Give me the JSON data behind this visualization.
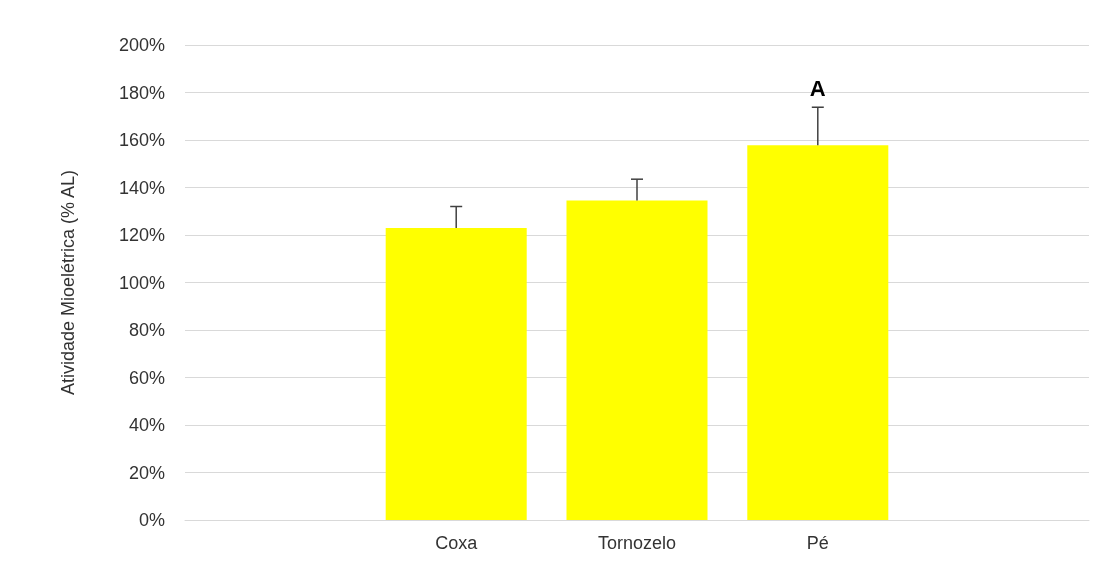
{
  "chart_data": {
    "type": "bar",
    "ylabel": "Atividade Mioelétrica (% AL)",
    "categories": [
      null,
      "Coxa",
      "Tornozelo",
      "Pé",
      null
    ],
    "values": [
      null,
      123,
      134.5,
      157.8,
      null
    ],
    "errors": [
      null,
      [
        123,
        132
      ],
      [
        134.5,
        143.5
      ],
      [
        157.8,
        173.8
      ],
      null
    ],
    "color": "#ffff00",
    "ylim": [
      0,
      200
    ],
    "yticks": [
      {
        "value": 0,
        "label": "0%"
      },
      {
        "value": 20,
        "label": "20%"
      },
      {
        "value": 40,
        "label": "40%"
      },
      {
        "value": 60,
        "label": "60%"
      },
      {
        "value": 80,
        "label": "80%"
      },
      {
        "value": 100,
        "label": "100%"
      },
      {
        "value": 120,
        "label": "120%"
      },
      {
        "value": 140,
        "label": "140%"
      },
      {
        "value": 160,
        "label": "160%"
      },
      {
        "value": 180,
        "label": "180%"
      },
      {
        "value": 200,
        "label": "200%"
      }
    ],
    "grid": "y",
    "annotations": [
      "A"
    ]
  }
}
